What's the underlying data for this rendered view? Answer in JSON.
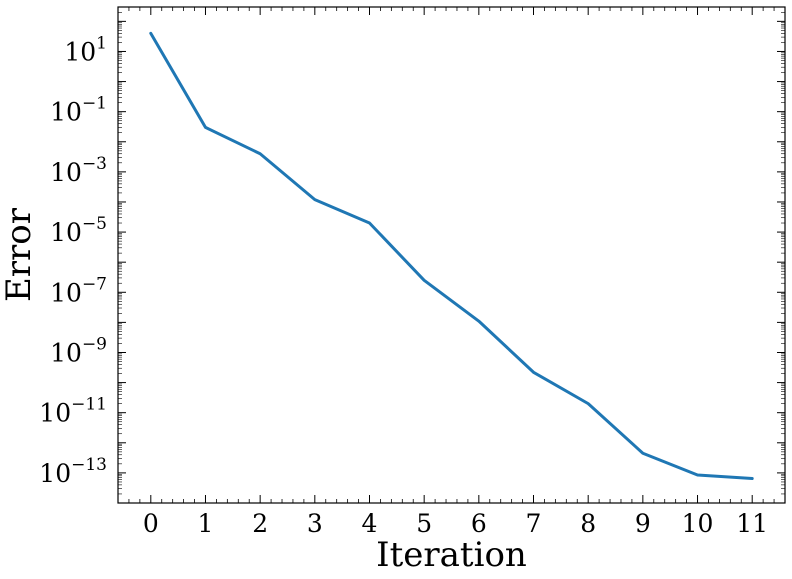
{
  "chart_data": {
    "type": "line",
    "title": "",
    "xlabel": "Iteration",
    "ylabel": "Error",
    "yscale": "log",
    "grid": false,
    "legend": "none",
    "xlim": [
      -0.6,
      11.6
    ],
    "ylim": [
      1e-14,
      300
    ],
    "x": [
      0,
      1,
      2,
      3,
      4,
      5,
      6,
      7,
      8,
      9,
      10,
      11
    ],
    "x_ticks": [
      "0",
      "1",
      "2",
      "3",
      "4",
      "5",
      "6",
      "7",
      "8",
      "9",
      "10",
      "11"
    ],
    "y_ticks": [
      {
        "base": "10",
        "exp": "1",
        "value": 10
      },
      {
        "base": "10",
        "exp": "−1",
        "value": 0.1
      },
      {
        "base": "10",
        "exp": "−3",
        "value": 0.001
      },
      {
        "base": "10",
        "exp": "−5",
        "value": 1e-05
      },
      {
        "base": "10",
        "exp": "−7",
        "value": 1e-07
      },
      {
        "base": "10",
        "exp": "−9",
        "value": 1e-09
      },
      {
        "base": "10",
        "exp": "−11",
        "value": 1e-11
      },
      {
        "base": "10",
        "exp": "−13",
        "value": 1e-13
      }
    ],
    "series": [
      {
        "color": "#1f77b4",
        "values": [
          40,
          0.03,
          0.004,
          0.00012,
          2e-05,
          2.5e-07,
          1.1e-08,
          2.2e-10,
          2e-11,
          4.5e-13,
          8.5e-14,
          6.5e-14
        ]
      }
    ]
  }
}
